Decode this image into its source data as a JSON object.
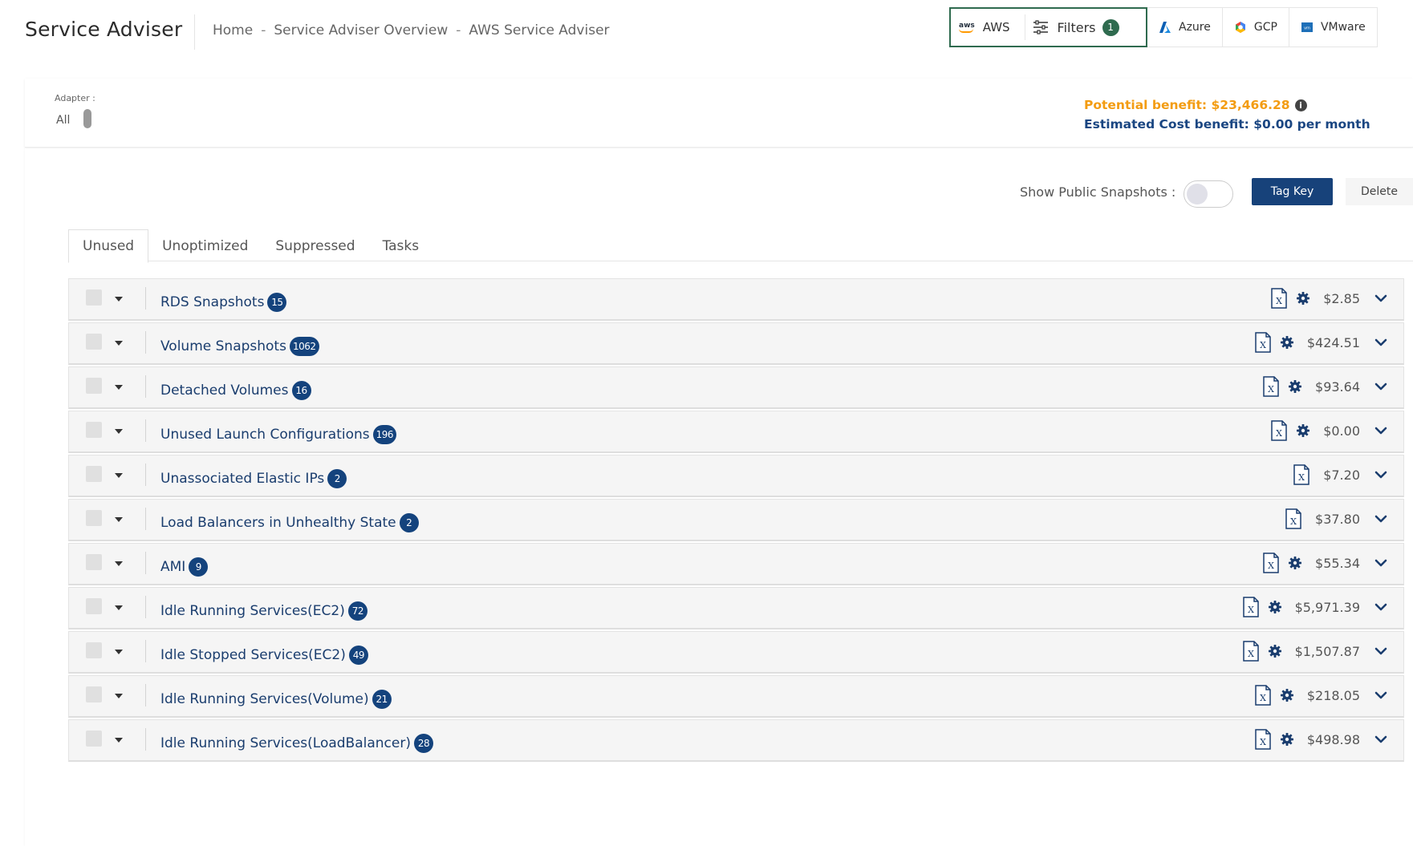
{
  "header": {
    "title": "Service Adviser",
    "breadcrumb": [
      "Home",
      "Service Adviser Overview",
      "AWS Service Adviser"
    ],
    "breadcrumb_separator": "-"
  },
  "clouds": {
    "active": {
      "logo_text": "aws",
      "label": "AWS",
      "filters_label": "Filters",
      "filters_count": "1"
    },
    "others": [
      {
        "label": "Azure",
        "icon": "azure-icon"
      },
      {
        "label": "GCP",
        "icon": "gcp-icon"
      },
      {
        "label": "VMware",
        "icon": "vmware-icon"
      }
    ]
  },
  "summary": {
    "adapter_label": "Adapter :",
    "adapter_value": "All",
    "potential_benefit": "Potential benefit: $23,466.28",
    "estimated_cost_benefit": "Estimated Cost benefit: $0.00 per month"
  },
  "controls": {
    "show_public_snapshots_label": "Show Public Snapshots :",
    "show_public_snapshots_on": false,
    "tag_key_label": "Tag Key",
    "delete_label": "Delete"
  },
  "tabs": [
    {
      "label": "Unused",
      "active": true
    },
    {
      "label": "Unoptimized",
      "active": false
    },
    {
      "label": "Suppressed",
      "active": false
    },
    {
      "label": "Tasks",
      "active": false
    }
  ],
  "rows": [
    {
      "label": "RDS Snapshots",
      "count": "15",
      "amount": "$2.85",
      "has_gear": true
    },
    {
      "label": "Volume Snapshots",
      "count": "1062",
      "amount": "$424.51",
      "has_gear": true
    },
    {
      "label": "Detached Volumes",
      "count": "16",
      "amount": "$93.64",
      "has_gear": true
    },
    {
      "label": "Unused Launch Configurations",
      "count": "196",
      "amount": "$0.00",
      "has_gear": true
    },
    {
      "label": "Unassociated Elastic IPs",
      "count": "2",
      "amount": "$7.20",
      "has_gear": false
    },
    {
      "label": "Load Balancers in Unhealthy State",
      "count": "2",
      "amount": "$37.80",
      "has_gear": false
    },
    {
      "label": "AMI",
      "count": "9",
      "amount": "$55.34",
      "has_gear": true
    },
    {
      "label": "Idle Running Services(EC2)",
      "count": "72",
      "amount": "$5,971.39",
      "has_gear": true
    },
    {
      "label": "Idle Stopped Services(EC2)",
      "count": "49",
      "amount": "$1,507.87",
      "has_gear": true
    },
    {
      "label": "Idle Running Services(Volume)",
      "count": "21",
      "amount": "$218.05",
      "has_gear": true
    },
    {
      "label": "Idle Running Services(LoadBalancer)",
      "count": "28",
      "amount": "$498.98",
      "has_gear": true
    }
  ],
  "colors": {
    "accent_green": "#2f6b4f",
    "primary_blue": "#17427a",
    "badge_blue": "#14437d",
    "potential_orange": "#f39c12"
  }
}
